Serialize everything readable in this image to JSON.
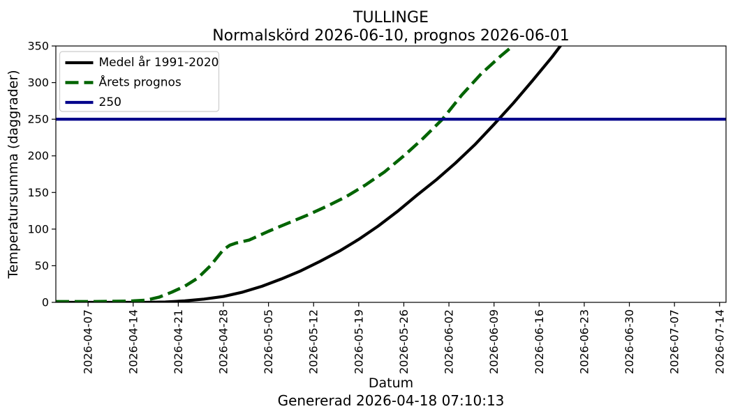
{
  "title": {
    "line1": "TULLINGE",
    "line2": "Normalskörd 2026-06-10, prognos 2026-06-01"
  },
  "footer": {
    "generated": "Genererad 2026-04-18 07:10:13"
  },
  "chart_data": {
    "type": "line",
    "title": "TULLINGE\nNormalskörd 2026-06-10, prognos 2026-06-01",
    "xlabel": "Datum",
    "ylabel": "Temperatursumma (daggrader)",
    "ylim": [
      0,
      350
    ],
    "yticks": [
      0,
      50,
      100,
      150,
      200,
      250,
      300,
      350
    ],
    "xlim": [
      "2026-04-02",
      "2026-07-15"
    ],
    "xticks": [
      "2026-04-07",
      "2026-04-14",
      "2026-04-21",
      "2026-04-28",
      "2026-05-05",
      "2026-05-12",
      "2026-05-19",
      "2026-05-26",
      "2026-06-02",
      "2026-06-09",
      "2026-06-16",
      "2026-06-23",
      "2026-06-30",
      "2026-07-07",
      "2026-07-14"
    ],
    "grid": false,
    "legend_position": "upper-left",
    "series": [
      {
        "name": "Medel år 1991-2020",
        "color": "#000000",
        "style": "solid",
        "points": [
          [
            "2026-04-02",
            0
          ],
          [
            "2026-04-07",
            0
          ],
          [
            "2026-04-12",
            0
          ],
          [
            "2026-04-16",
            0
          ],
          [
            "2026-04-19",
            0.5
          ],
          [
            "2026-04-22",
            2
          ],
          [
            "2026-04-25",
            4.5
          ],
          [
            "2026-04-28",
            8
          ],
          [
            "2026-05-01",
            14
          ],
          [
            "2026-05-04",
            22
          ],
          [
            "2026-05-07",
            32
          ],
          [
            "2026-05-10",
            43
          ],
          [
            "2026-05-13",
            56
          ],
          [
            "2026-05-16",
            70
          ],
          [
            "2026-05-19",
            86
          ],
          [
            "2026-05-22",
            104
          ],
          [
            "2026-05-25",
            124
          ],
          [
            "2026-05-28",
            146
          ],
          [
            "2026-05-31",
            167
          ],
          [
            "2026-06-03",
            190
          ],
          [
            "2026-06-06",
            215
          ],
          [
            "2026-06-09",
            243
          ],
          [
            "2026-06-12",
            272
          ],
          [
            "2026-06-15",
            303
          ],
          [
            "2026-06-18",
            335
          ],
          [
            "2026-06-21",
            370
          ]
        ]
      },
      {
        "name": "Årets prognos",
        "color": "#006400",
        "style": "dashed",
        "points": [
          [
            "2026-04-02",
            1
          ],
          [
            "2026-04-07",
            1
          ],
          [
            "2026-04-12",
            1.5
          ],
          [
            "2026-04-14",
            2
          ],
          [
            "2026-04-16",
            3
          ],
          [
            "2026-04-18",
            7
          ],
          [
            "2026-04-20",
            14
          ],
          [
            "2026-04-22",
            22
          ],
          [
            "2026-04-24",
            33
          ],
          [
            "2026-04-26",
            50
          ],
          [
            "2026-04-28",
            72
          ],
          [
            "2026-04-29",
            78
          ],
          [
            "2026-04-30",
            81
          ],
          [
            "2026-05-02",
            85
          ],
          [
            "2026-05-05",
            97
          ],
          [
            "2026-05-08",
            108
          ],
          [
            "2026-05-11",
            119
          ],
          [
            "2026-05-14",
            131
          ],
          [
            "2026-05-17",
            144
          ],
          [
            "2026-05-20",
            160
          ],
          [
            "2026-05-23",
            178
          ],
          [
            "2026-05-26",
            200
          ],
          [
            "2026-05-29",
            224
          ],
          [
            "2026-06-01",
            250
          ],
          [
            "2026-06-04",
            283
          ],
          [
            "2026-06-07",
            312
          ],
          [
            "2026-06-10",
            336
          ],
          [
            "2026-06-13",
            358
          ]
        ]
      },
      {
        "name": "250",
        "color": "#00008b",
        "style": "solid",
        "points": [
          [
            "2026-04-02",
            250
          ],
          [
            "2026-07-15",
            250
          ]
        ]
      }
    ]
  }
}
